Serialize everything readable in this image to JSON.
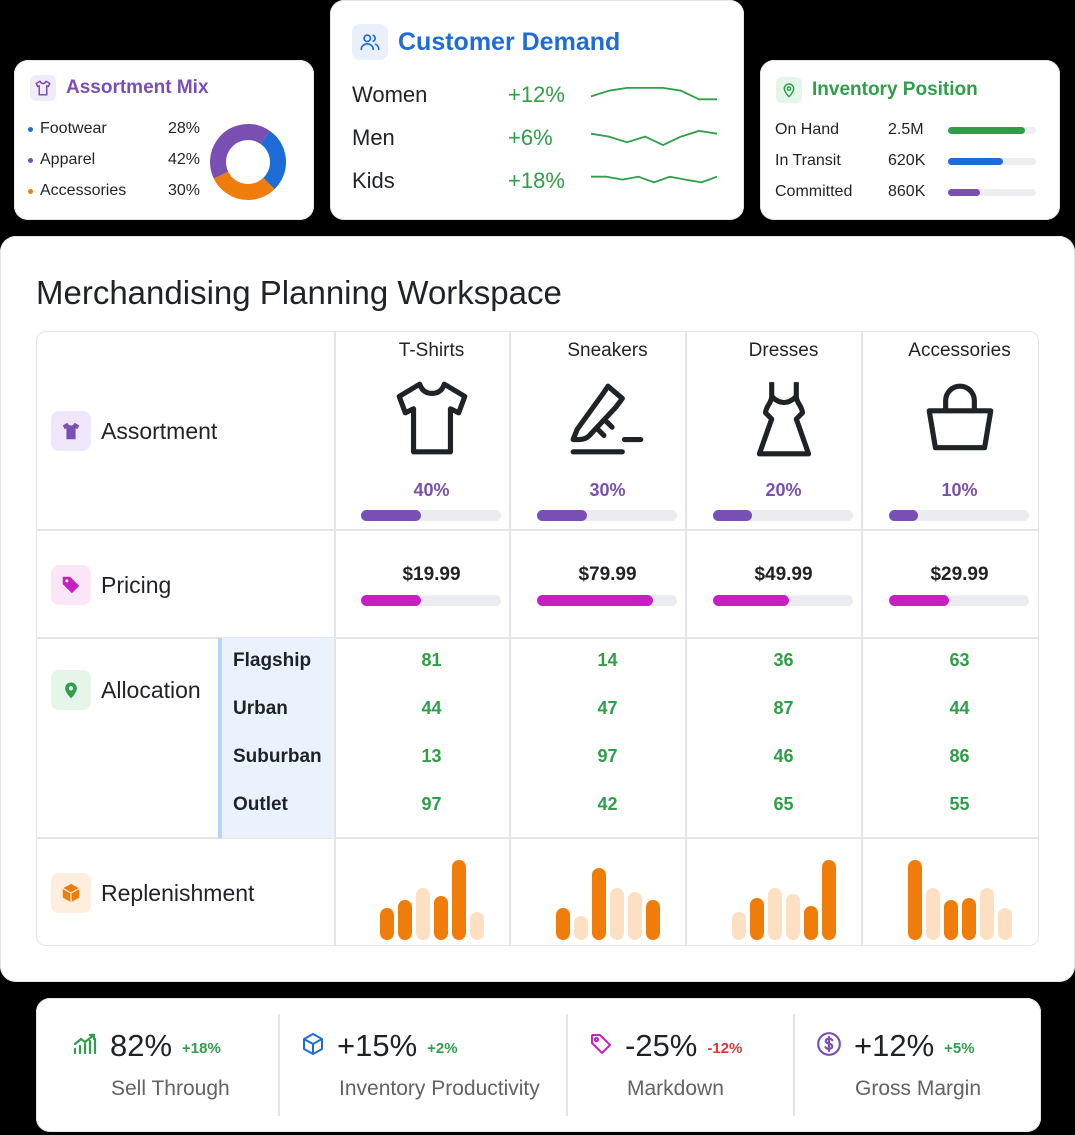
{
  "assortment_mix": {
    "title": "Assortment Mix",
    "icon": "shirt-icon",
    "items": [
      {
        "label": "Footwear",
        "pct": "28%",
        "value": 28,
        "color": "#1e6dd6"
      },
      {
        "label": "Apparel",
        "pct": "42%",
        "value": 42,
        "color": "#7a4fb4"
      },
      {
        "label": "Accessories",
        "pct": "30%",
        "value": 30,
        "color": "#f07d0a"
      }
    ]
  },
  "customer_demand": {
    "title": "Customer Demand",
    "icon": "users-icon",
    "rows": [
      {
        "label": "Women",
        "value": "+12%",
        "trend": [
          3,
          5,
          6,
          6,
          6,
          5,
          2,
          2
        ]
      },
      {
        "label": "Men",
        "value": "+6%",
        "trend": [
          5,
          4,
          2,
          4,
          1,
          4,
          6,
          5
        ]
      },
      {
        "label": "Kids",
        "value": "+18%",
        "trend": [
          5,
          5,
          4,
          5,
          3,
          5,
          4,
          3,
          5
        ]
      }
    ]
  },
  "inventory_position": {
    "title": "Inventory Position",
    "icon": "location-pin-icon",
    "rows": [
      {
        "label": "On Hand",
        "value": "2.5M",
        "fill": 0.87,
        "color": "#2e9e48"
      },
      {
        "label": "In Transit",
        "value": "620K",
        "fill": 0.62,
        "color": "#1e6dd6"
      },
      {
        "label": "Committed",
        "value": "860K",
        "fill": 0.36,
        "color": "#7a4fb4"
      }
    ]
  },
  "workspace": {
    "title": "Merchandising Planning Workspace",
    "rows": {
      "assortment": "Assortment",
      "pricing": "Pricing",
      "allocation": "Allocation",
      "replenishment": "Replenishment"
    },
    "categories": [
      {
        "name": "T-Shirts",
        "icon": "tshirt-icon",
        "share": "40%",
        "share_fill": 0.43,
        "price": "$19.99",
        "price_fill": 0.43
      },
      {
        "name": "Sneakers",
        "icon": "sneaker-icon",
        "share": "30%",
        "share_fill": 0.36,
        "price": "$79.99",
        "price_fill": 0.83
      },
      {
        "name": "Dresses",
        "icon": "dress-icon",
        "share": "20%",
        "share_fill": 0.28,
        "price": "$49.99",
        "price_fill": 0.54
      },
      {
        "name": "Accessories",
        "icon": "handbag-icon",
        "share": "10%",
        "share_fill": 0.21,
        "price": "$29.99",
        "price_fill": 0.43
      }
    ],
    "stores": [
      "Flagship",
      "Urban",
      "Suburban",
      "Outlet"
    ],
    "allocation": [
      [
        "81",
        "14",
        "36",
        "63"
      ],
      [
        "44",
        "47",
        "87",
        "44"
      ],
      [
        "13",
        "97",
        "46",
        "86"
      ],
      [
        "97",
        "42",
        "65",
        "55"
      ]
    ],
    "replenishment": [
      [
        0.4,
        0.5,
        0.65,
        0.55,
        1.0,
        0.35
      ],
      [
        0.4,
        0.3,
        0.9,
        0.65,
        0.6,
        0.5
      ],
      [
        0.35,
        0.52,
        0.65,
        0.58,
        0.42,
        1.0
      ],
      [
        1.0,
        0.65,
        0.5,
        0.52,
        0.65,
        0.4
      ]
    ],
    "replenishment_highlight": [
      [
        true,
        true,
        false,
        true,
        true,
        false
      ],
      [
        true,
        false,
        true,
        false,
        false,
        true
      ],
      [
        false,
        true,
        false,
        false,
        true,
        true
      ],
      [
        true,
        false,
        true,
        true,
        false,
        false
      ]
    ],
    "colors": {
      "purple": "#7a4fb4",
      "magenta": "#c71fc2",
      "green": "#2e9e48",
      "orange": "#f07d0a",
      "orange_light": "#fde0c2"
    }
  },
  "kpis": [
    {
      "value": "82%",
      "delta": "+18%",
      "delta_color": "#2e9e48",
      "label": "Sell Through",
      "icon": "bar-trend-icon"
    },
    {
      "value": "+15%",
      "delta": "+2%",
      "delta_color": "#2e9e48",
      "label": "Inventory Productivity",
      "icon": "cube-icon"
    },
    {
      "value": "-25%",
      "delta": "-12%",
      "delta_color": "#d43a3a",
      "label": "Markdown",
      "icon": "tag-icon"
    },
    {
      "value": "+12%",
      "delta": "+5%",
      "delta_color": "#2e9e48",
      "label": "Gross Margin",
      "icon": "dollar-circle-icon"
    }
  ]
}
